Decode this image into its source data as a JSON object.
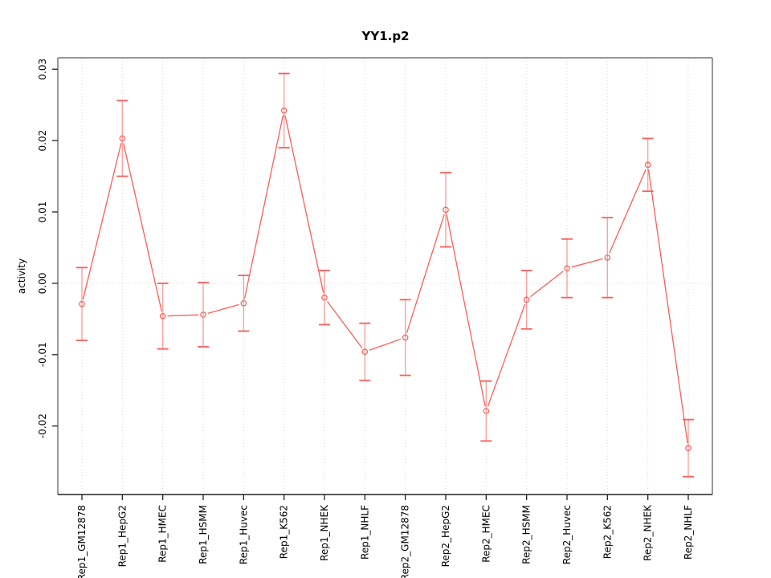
{
  "chart_data": {
    "type": "line",
    "title": "YY1.p2",
    "xlabel": "",
    "ylabel": "activity",
    "marker": "open-circle",
    "legend": "none",
    "categories": [
      "Rep1_GM12878",
      "Rep1_HepG2",
      "Rep1_HMEC",
      "Rep1_HSMM",
      "Rep1_Huvec",
      "Rep1_K562",
      "Rep1_NHEK",
      "Rep1_NHLF",
      "Rep2_GM12878",
      "Rep2_HepG2",
      "Rep2_HMEC",
      "Rep2_HSMM",
      "Rep2_Huvec",
      "Rep2_K562",
      "Rep2_NHEK",
      "Rep2_NHLF"
    ],
    "series": [
      {
        "name": "activity",
        "values": [
          -0.0029,
          0.0203,
          -0.0046,
          -0.0044,
          -0.0028,
          0.0242,
          -0.002,
          -0.0096,
          -0.0076,
          0.0103,
          -0.0179,
          -0.0023,
          0.0021,
          0.0036,
          0.0166,
          -0.0231
        ],
        "errors": [
          0.0051,
          0.0053,
          0.0046,
          0.0045,
          0.0039,
          0.0052,
          0.0038,
          0.004,
          0.0053,
          0.0052,
          0.0042,
          0.0041,
          0.0041,
          0.0056,
          0.0037,
          0.004
        ]
      }
    ],
    "yticks": [
      -0.02,
      -0.01,
      0,
      0.01,
      0.02,
      0.03
    ],
    "ytick_labels": [
      "-0.02",
      "-0.01",
      "0.00",
      "0.01",
      "0.02",
      "0.03"
    ],
    "ylim": [
      -0.0296,
      0.0316
    ],
    "grid": {
      "vertical_per_category": true,
      "horizontal_zero_only": true,
      "style": "dotted"
    },
    "colors": {
      "line": "#f75f5a",
      "error_stem": "#f9a3a0",
      "error_cap": "#f75f5a",
      "grid": "#dadada",
      "box": "#999999",
      "axis": "#222222",
      "text": "#000000"
    }
  }
}
